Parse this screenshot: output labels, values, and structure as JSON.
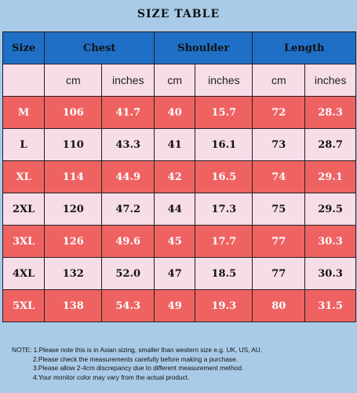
{
  "title": "SIZE TABLE",
  "headers": [
    "Size",
    "Chest",
    "Shoulder",
    "Length"
  ],
  "units": [
    "",
    "cm",
    "inches",
    "cm",
    "inches",
    "cm",
    "inches"
  ],
  "rows": [
    [
      "M",
      "106",
      "41.7",
      "40",
      "15.7",
      "72",
      "28.3"
    ],
    [
      "L",
      "110",
      "43.3",
      "41",
      "16.1",
      "73",
      "28.7"
    ],
    [
      "XL",
      "114",
      "44.9",
      "42",
      "16.5",
      "74",
      "29.1"
    ],
    [
      "2XL",
      "120",
      "47.2",
      "44",
      "17.3",
      "75",
      "29.5"
    ],
    [
      "3XL",
      "126",
      "49.6",
      "45",
      "17.7",
      "77",
      "30.3"
    ],
    [
      "4XL",
      "132",
      "52.0",
      "47",
      "18.5",
      "77",
      "30.3"
    ],
    [
      "5XL",
      "138",
      "54.3",
      "49",
      "19.3",
      "80",
      "31.5"
    ]
  ],
  "notes": [
    "NOTE: 1.Please note this is in Asian sizing, smaller than western size e.g. UK, US, AU.",
    "2.Please check the measurements carefully before making a purchase.",
    "3.Please allow 2-4cm discrepancy due to different measurement method.",
    "4.Your monitor color may vary from the actual product."
  ],
  "colors": {
    "background": "#a9cbe8",
    "header": "#1f6fc6",
    "row_red": "#ef6262",
    "row_pink": "#f6dde8"
  }
}
